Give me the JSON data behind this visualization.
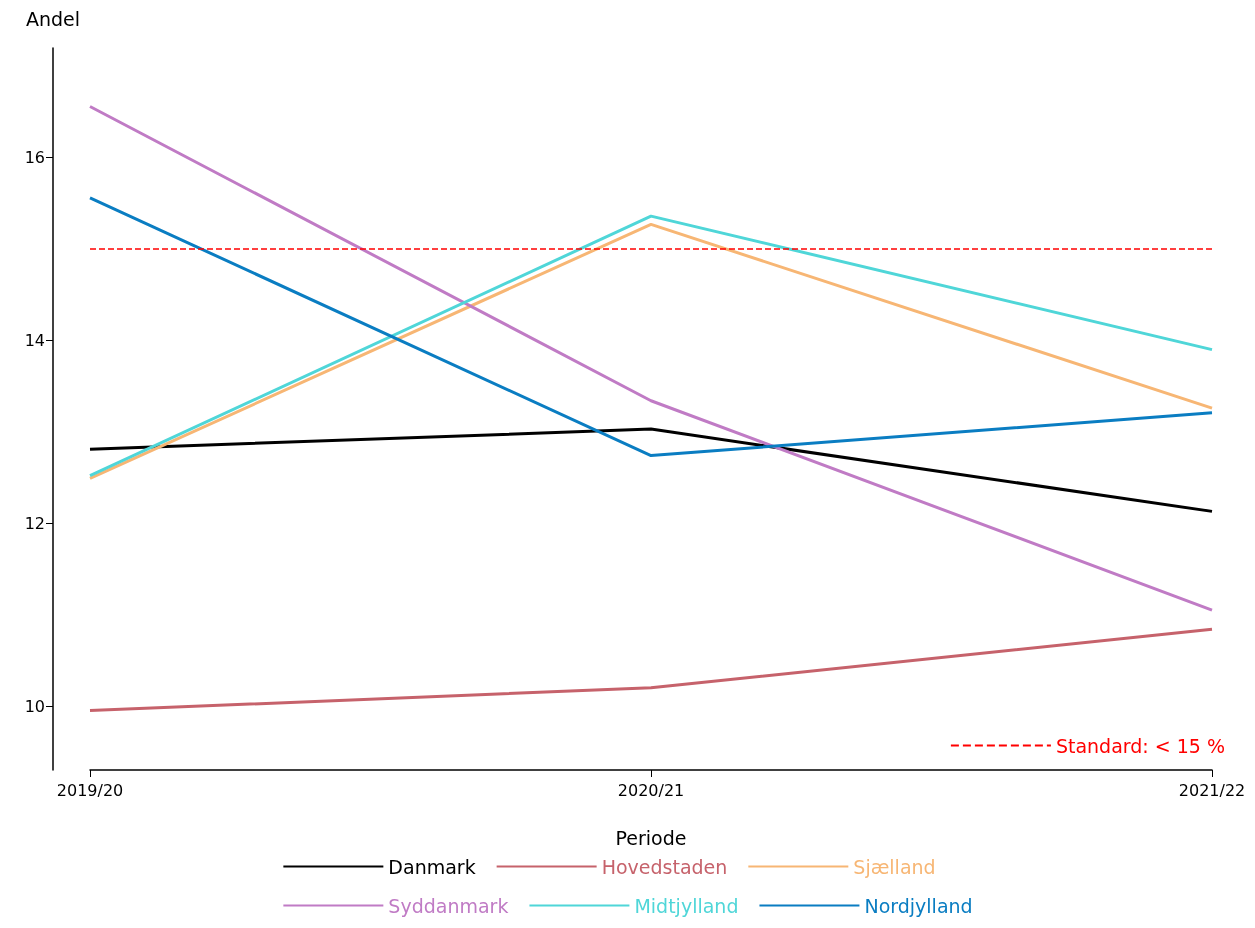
{
  "chart_data": {
    "type": "line",
    "xlabel": "Periode",
    "ylabel": "Andel",
    "categories": [
      "2019/20",
      "2020/21",
      "2021/22"
    ],
    "series": [
      {
        "name": "Danmark",
        "color": "#000000",
        "values": [
          12.81,
          13.03,
          12.13
        ]
      },
      {
        "name": "Hovedstaden",
        "color": "#c6626b",
        "values": [
          9.95,
          10.2,
          10.84
        ]
      },
      {
        "name": "Sjælland",
        "color": "#f7b674",
        "values": [
          12.49,
          15.27,
          13.26
        ]
      },
      {
        "name": "Syddanmark",
        "color": "#c07bc5",
        "values": [
          16.56,
          13.34,
          11.05
        ]
      },
      {
        "name": "Midtjylland",
        "color": "#4fd6d8",
        "values": [
          12.52,
          15.36,
          13.9
        ]
      },
      {
        "name": "Nordjylland",
        "color": "#0a7dc2",
        "values": [
          15.56,
          12.74,
          13.21
        ]
      }
    ],
    "ylim": [
      9.3,
      17.2
    ],
    "yticks": [
      10,
      12,
      14,
      16
    ],
    "grid": false,
    "legend": "bottom",
    "marker": "none",
    "line_style": "solid",
    "ref_lines": [
      {
        "axis": "y",
        "value": 15,
        "label": "Standard: < 15 %",
        "color": "#ff0000",
        "line_style": "dashed"
      }
    ]
  }
}
